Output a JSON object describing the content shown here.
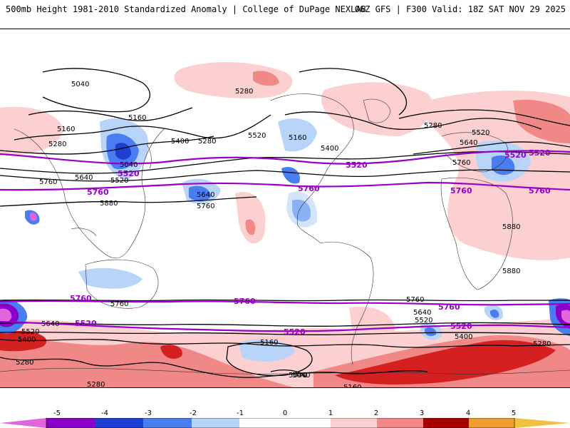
{
  "header": {
    "title_left": "500mb Height 1981-2010 Standardized Anomaly | College of DuPage NEXLAB",
    "title_right": "06Z GFS | F300 Valid: 18Z SAT NOV 29 2025"
  },
  "colors": {
    "anom_neg5": "#e066e0",
    "anom_neg4": "#8a00c8",
    "anom_neg3": "#1e3fd0",
    "anom_neg2": "#4a7df0",
    "anom_neg1": "#b8d4f8",
    "anom_pos1": "#fcd0d0",
    "anom_pos2": "#f08888",
    "anom_pos3": "#d42020",
    "anom_pos4": "#a80000",
    "anom_pos5": "#f0a030",
    "contour": "#000000",
    "highlight_contour": "#9a00c8"
  },
  "colorbar": {
    "ticks": [
      "-5",
      "-4",
      "-3",
      "-2",
      "-1",
      "0",
      "1",
      "2",
      "3",
      "4",
      "5"
    ]
  },
  "map": {
    "contour_labels": [
      "5040",
      "5160",
      "5280",
      "5400",
      "5520",
      "5640",
      "5760",
      "5880",
      "5160",
      "5280",
      "5160",
      "5400",
      "5280",
      "5520",
      "5040",
      "5640",
      "5760",
      "5880",
      "5280",
      "5520",
      "5760",
      "5640",
      "5880",
      "5760",
      "5640",
      "5520",
      "5400",
      "5280",
      "5160",
      "5040",
      "5280",
      "5520",
      "5400",
      "5640",
      "5760",
      "5280",
      "5160",
      "5040"
    ],
    "highlight_labels": [
      "5520",
      "5760",
      "5520",
      "5760",
      "5760",
      "5520",
      "5760",
      "5520",
      "5760",
      "5520",
      "5760",
      "5520",
      "5760",
      "5520"
    ]
  }
}
